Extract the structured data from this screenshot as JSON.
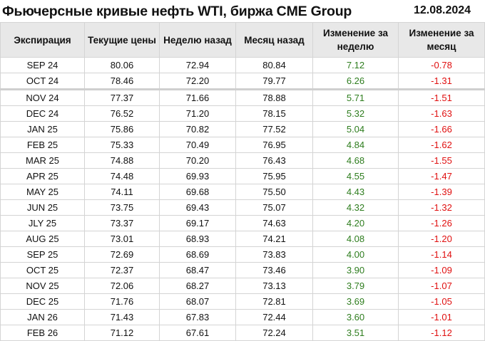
{
  "title": "Фьючерсные кривые нефть WTI, биржа CME Group",
  "date": "12.08.2024",
  "colors": {
    "positive": "#2e7d1e",
    "negative": "#e01010",
    "header_bg": "#e8e8e8"
  },
  "columns": [
    "Экспирация",
    "Текущие цены",
    "Неделю назад",
    "Месяц назад",
    "Изменение за неделю",
    "Изменение за месяц"
  ],
  "rows": [
    [
      "SEP 24",
      "80.06",
      "72.94",
      "80.84",
      "7.12",
      "-0.78"
    ],
    [
      "OCT 24",
      "78.46",
      "72.20",
      "79.77",
      "6.26",
      "-1.31"
    ],
    [
      "NOV 24",
      "77.37",
      "71.66",
      "78.88",
      "5.71",
      "-1.51"
    ],
    [
      "DEC 24",
      "76.52",
      "71.20",
      "78.15",
      "5.32",
      "-1.63"
    ],
    [
      "JAN 25",
      "75.86",
      "70.82",
      "77.52",
      "5.04",
      "-1.66"
    ],
    [
      "FEB 25",
      "75.33",
      "70.49",
      "76.95",
      "4.84",
      "-1.62"
    ],
    [
      "MAR 25",
      "74.88",
      "70.20",
      "76.43",
      "4.68",
      "-1.55"
    ],
    [
      "APR 25",
      "74.48",
      "69.93",
      "75.95",
      "4.55",
      "-1.47"
    ],
    [
      "MAY 25",
      "74.11",
      "69.68",
      "75.50",
      "4.43",
      "-1.39"
    ],
    [
      "JUN 25",
      "73.75",
      "69.43",
      "75.07",
      "4.32",
      "-1.32"
    ],
    [
      "JLY 25",
      "73.37",
      "69.17",
      "74.63",
      "4.20",
      "-1.26"
    ],
    [
      "AUG 25",
      "73.01",
      "68.93",
      "74.21",
      "4.08",
      "-1.20"
    ],
    [
      "SEP 25",
      "72.69",
      "68.69",
      "73.83",
      "4.00",
      "-1.14"
    ],
    [
      "OCT 25",
      "72.37",
      "68.47",
      "73.46",
      "3.90",
      "-1.09"
    ],
    [
      "NOV 25",
      "72.06",
      "68.27",
      "73.13",
      "3.79",
      "-1.07"
    ],
    [
      "DEC 25",
      "71.76",
      "68.07",
      "72.81",
      "3.69",
      "-1.05"
    ],
    [
      "JAN 26",
      "71.43",
      "67.83",
      "72.44",
      "3.60",
      "-1.01"
    ],
    [
      "FEB 26",
      "71.12",
      "67.61",
      "72.24",
      "3.51",
      "-1.12"
    ]
  ]
}
